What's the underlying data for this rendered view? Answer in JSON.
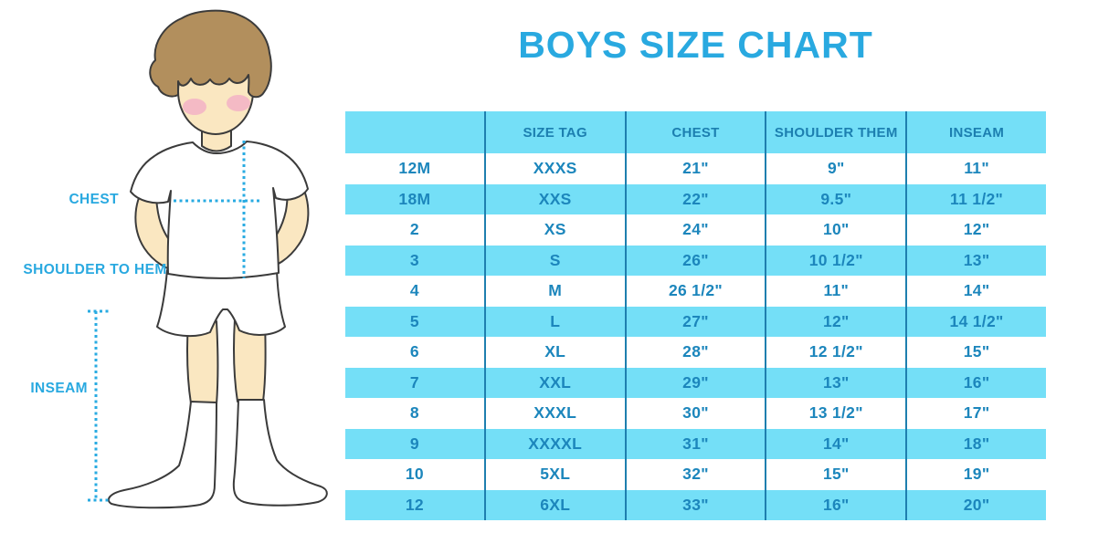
{
  "title": "BOYS SIZE CHART",
  "figure": {
    "chest_label": "CHEST",
    "shoulder_label": "SHOULDER TO HEM",
    "inseam_label": "INSEAM"
  },
  "chart_data": {
    "type": "table",
    "title": "BOYS SIZE CHART",
    "columns": [
      "",
      "SIZE TAG",
      "CHEST",
      "SHOULDER THEM",
      "INSEAM"
    ],
    "rows": [
      [
        "12M",
        "XXXS",
        "21\"",
        "9\"",
        "11\""
      ],
      [
        "18M",
        "XXS",
        "22\"",
        "9.5\"",
        "11 1/2\""
      ],
      [
        "2",
        "XS",
        "24\"",
        "10\"",
        "12\""
      ],
      [
        "3",
        "S",
        "26\"",
        "10 1/2\"",
        "13\""
      ],
      [
        "4",
        "M",
        "26 1/2\"",
        "11\"",
        "14\""
      ],
      [
        "5",
        "L",
        "27\"",
        "12\"",
        "14 1/2\""
      ],
      [
        "6",
        "XL",
        "28\"",
        "12 1/2\"",
        "15\""
      ],
      [
        "7",
        "XXL",
        "29\"",
        "13\"",
        "16\""
      ],
      [
        "8",
        "XXXL",
        "30\"",
        "13 1/2\"",
        "17\""
      ],
      [
        "9",
        "XXXXL",
        "31\"",
        "14\"",
        "18\""
      ],
      [
        "10",
        "5XL",
        "32\"",
        "15\"",
        "19\""
      ],
      [
        "12",
        "6XL",
        "33\"",
        "16\"",
        "20\""
      ]
    ],
    "row_striping": "alternating white and cyan, starting white",
    "legend_position": "none",
    "grid": "vertical column dividers only"
  },
  "colors": {
    "accent_blue": "#29A9E0",
    "table_cyan": "#74DFF7",
    "table_divider": "#1E7FAF",
    "table_text": "#1C86BC",
    "dotted_line": "#29ABE2",
    "skin": "#FAE7C1",
    "hair": "#B28F5D",
    "cheek": "#F3AFC6",
    "outline": "#3B3B3B"
  }
}
